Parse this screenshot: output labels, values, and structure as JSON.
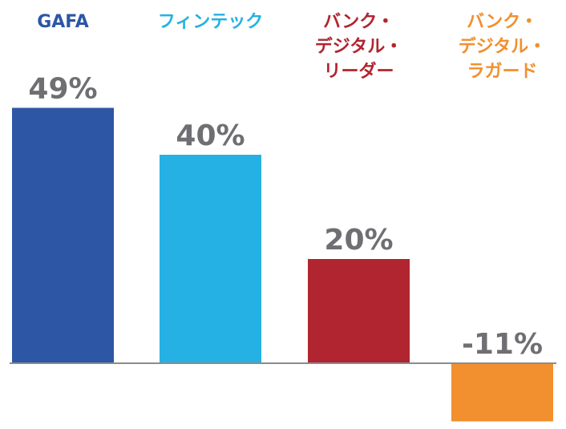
{
  "chart_data": {
    "type": "bar",
    "categories": [
      {
        "lines": [
          "GAFA"
        ]
      },
      {
        "lines": [
          "フィンテック"
        ]
      },
      {
        "lines": [
          "バンク・",
          "デジタル・",
          "リーダー"
        ]
      },
      {
        "lines": [
          "バンク・",
          "デジタル・",
          "ラガード"
        ]
      }
    ],
    "values": [
      49,
      40,
      20,
      -11
    ],
    "value_labels": [
      "49%",
      "40%",
      "20%",
      "-11%"
    ],
    "colors": [
      "#2d56a4",
      "#25b1e4",
      "#b0252f",
      "#f28f2e"
    ],
    "value_label_color": "#6f6f73",
    "baseline_color": "#8c8c8c",
    "ylim": [
      -11,
      49
    ],
    "legend": "none",
    "grid": false
  }
}
